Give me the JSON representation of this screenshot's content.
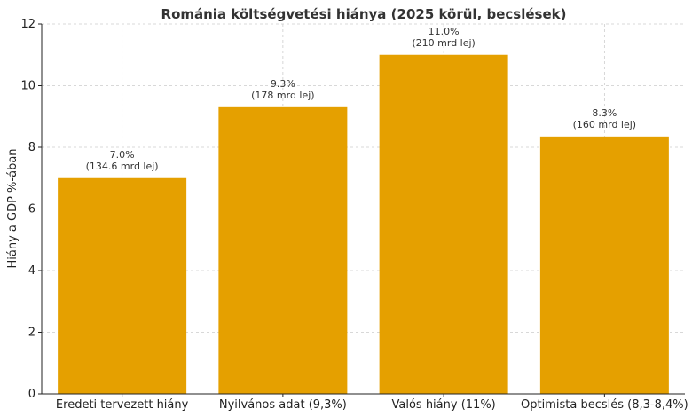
{
  "chart_data": {
    "type": "bar",
    "title": "Románia költségvetési hiánya (2025 körül, becslések)",
    "xlabel": "",
    "ylabel": "Hiány a GDP %-ában",
    "categories": [
      "Eredeti tervezett hiány",
      "Nyilvános adat (9,3%)",
      "Valós hiány (11%)",
      "Optimista becslés (8,3-8,4%)"
    ],
    "values": [
      7.0,
      9.3,
      11.0,
      8.35
    ],
    "value_labels": [
      "7.0%",
      "9.3%",
      "11.0%",
      "8.3%"
    ],
    "sub_labels": [
      "(134.6 mrd lej)",
      "(178 mrd lej)",
      "(210 mrd lej)",
      "(160 mrd lej)"
    ],
    "ylim": [
      0,
      12
    ],
    "yticks": [
      0,
      2,
      4,
      6,
      8,
      10,
      12
    ],
    "grid": true,
    "bar_color": "#e5a000"
  }
}
